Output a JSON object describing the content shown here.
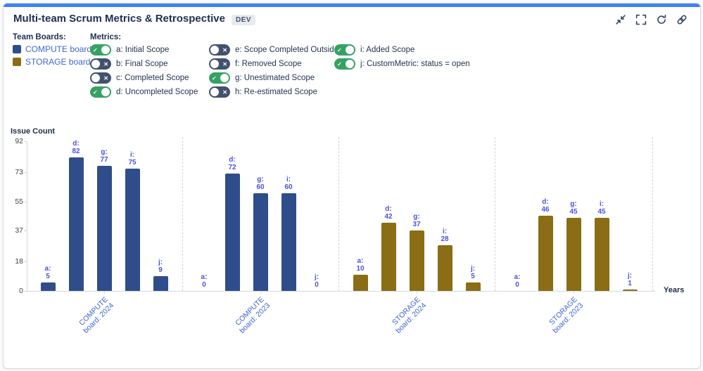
{
  "header": {
    "title": "Multi-team Scrum Metrics & Retrospective",
    "badge": "DEV",
    "icons": [
      {
        "name": "collapse-icon"
      },
      {
        "name": "fullscreen-icon"
      },
      {
        "name": "refresh-icon"
      },
      {
        "name": "link-icon"
      }
    ]
  },
  "team_boards": {
    "label": "Team Boards:",
    "items": [
      {
        "label": "COMPUTE board",
        "color": "#2f4d8a"
      },
      {
        "label": "STORAGE board",
        "color": "#8a6d15"
      }
    ]
  },
  "metrics": {
    "label": "Metrics:",
    "toggles": [
      {
        "label": "a: Initial Scope",
        "on": true
      },
      {
        "label": "b: Final Scope",
        "on": false
      },
      {
        "label": "c: Completed Scope",
        "on": false
      },
      {
        "label": "d: Uncompleted Scope",
        "on": true
      },
      {
        "label": "e: Scope Completed Outside",
        "on": false
      },
      {
        "label": "f: Removed Scope",
        "on": false
      },
      {
        "label": "g: Unestimated Scope",
        "on": true
      },
      {
        "label": "h: Re-estimated Scope",
        "on": false
      },
      {
        "label": "i: Added Scope",
        "on": true
      },
      {
        "label": "j: CustomMetric: status = open",
        "on": true
      }
    ]
  },
  "chart_data": {
    "type": "bar",
    "title": "",
    "ylabel": "Issue Count",
    "xlabel": "Years",
    "ylim": [
      0,
      92
    ],
    "yticks": [
      0,
      18,
      37,
      55,
      73,
      92
    ],
    "legend_position": "top-left",
    "grid": "dashed vertical separators between groups",
    "value_label_color": "#4b50e0",
    "category_label_color": "#3e66cc",
    "groups": [
      {
        "label": [
          "COMPUTE",
          "board: 2024"
        ],
        "color": "#2f4d8a",
        "bars": [
          {
            "metric": "a",
            "value": 5
          },
          {
            "metric": "d",
            "value": 82
          },
          {
            "metric": "g",
            "value": 77
          },
          {
            "metric": "i",
            "value": 75
          },
          {
            "metric": "j",
            "value": 9
          }
        ]
      },
      {
        "label": [
          "COMPUTE",
          "board: 2023"
        ],
        "color": "#2f4d8a",
        "bars": [
          {
            "metric": "a",
            "value": 0
          },
          {
            "metric": "d",
            "value": 72
          },
          {
            "metric": "g",
            "value": 60
          },
          {
            "metric": "i",
            "value": 60
          },
          {
            "metric": "j",
            "value": 0
          }
        ]
      },
      {
        "label": [
          "STORAGE",
          "board: 2024"
        ],
        "color": "#8a6d15",
        "bars": [
          {
            "metric": "a",
            "value": 10
          },
          {
            "metric": "d",
            "value": 42
          },
          {
            "metric": "g",
            "value": 37
          },
          {
            "metric": "i",
            "value": 28
          },
          {
            "metric": "j",
            "value": 5
          }
        ]
      },
      {
        "label": [
          "STORAGE",
          "board: 2023"
        ],
        "color": "#8a6d15",
        "bars": [
          {
            "metric": "a",
            "value": 0
          },
          {
            "metric": "d",
            "value": 46
          },
          {
            "metric": "g",
            "value": 45
          },
          {
            "metric": "i",
            "value": 45
          },
          {
            "metric": "j",
            "value": 1
          }
        ]
      }
    ]
  },
  "colors": {
    "top_strip": "#3b82f6",
    "compute_blue": "#2f4d8a",
    "storage_gold": "#8a6d15",
    "toggle_on": "#35a263",
    "toggle_off": "#42526e",
    "link_blue": "#3e67ce",
    "title_text": "#1d2f52"
  }
}
